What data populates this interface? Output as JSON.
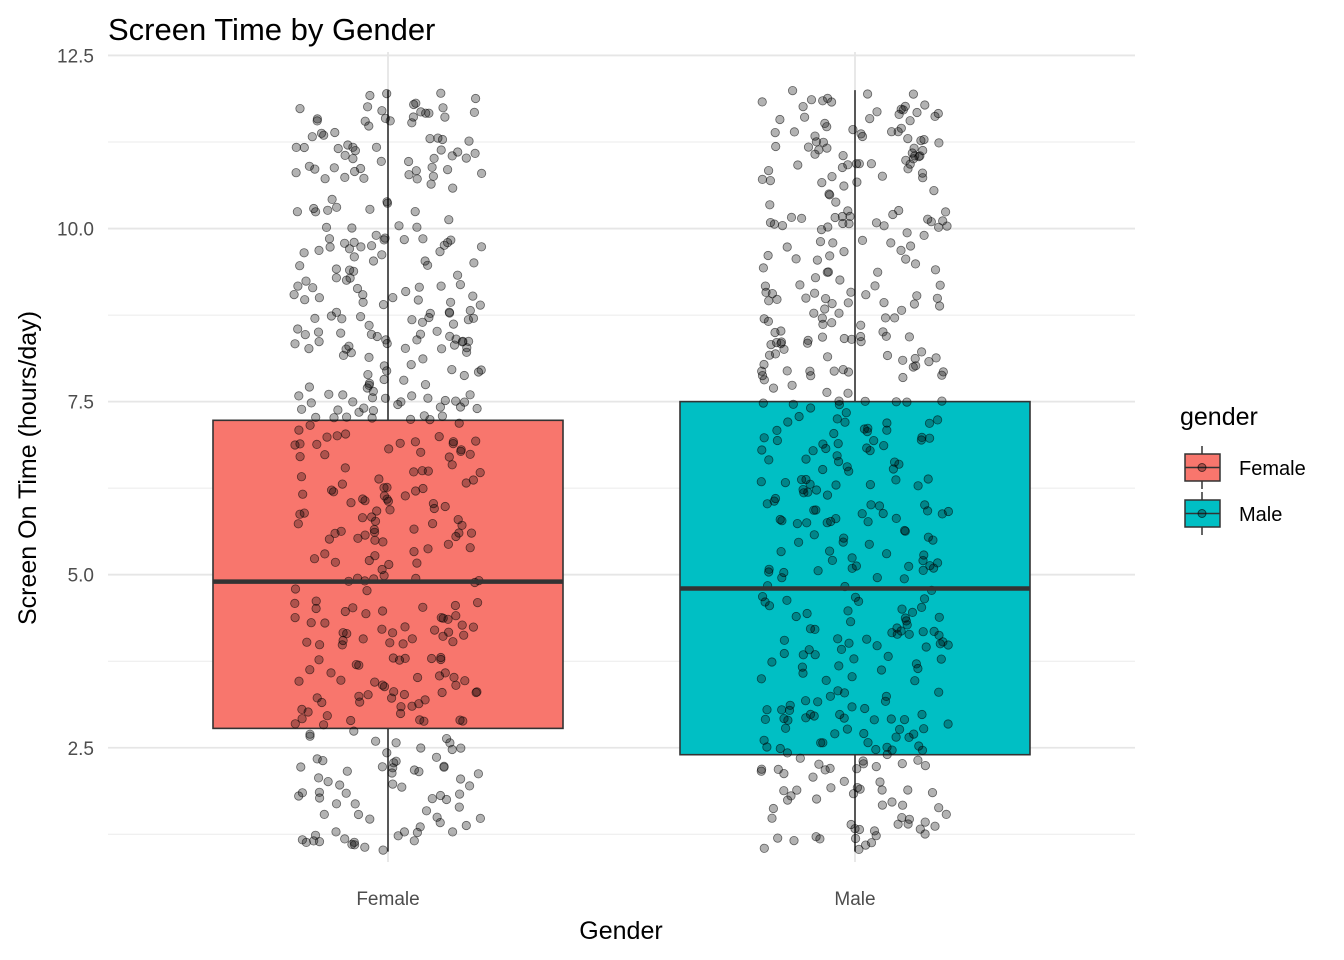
{
  "chart_data": {
    "type": "box",
    "title": "Screen Time  by Gender",
    "xlabel": "Gender",
    "ylabel": "Screen On Time (hours/day)",
    "ylim": [
      0.85,
      12.55
    ],
    "yticks": [
      "2.5",
      "5.0",
      "7.5",
      "10.0",
      "12.5"
    ],
    "ytick_values": [
      2.5,
      5.0,
      7.5,
      10.0,
      12.5
    ],
    "categories": [
      "Female",
      "Male"
    ],
    "legend": {
      "title": "gender",
      "position": "right",
      "entries": [
        {
          "label": "Female",
          "color": "#F8766D"
        },
        {
          "label": "Male",
          "color": "#00BFC4"
        }
      ]
    },
    "boxes": [
      {
        "category": "Female",
        "min": 1.0,
        "q1": 2.78,
        "median": 4.9,
        "q3": 7.23,
        "max": 12.0,
        "color": "#F8766D"
      },
      {
        "category": "Male",
        "min": 1.0,
        "q1": 2.4,
        "median": 4.8,
        "q3": 7.5,
        "max": 12.0,
        "color": "#00BFC4"
      }
    ],
    "jitter_points_per_group": 480,
    "point_color": "#000000",
    "point_alpha": 0.3,
    "grid": true
  }
}
